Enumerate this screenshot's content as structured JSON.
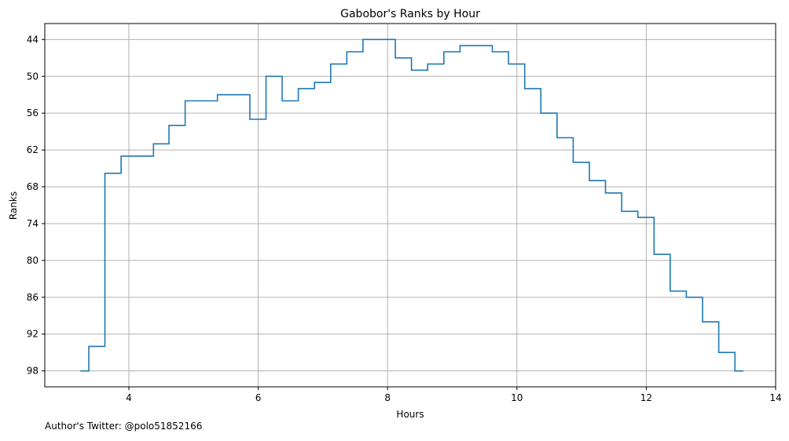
{
  "chart_data": {
    "type": "line",
    "title": "Gabobor's Ranks by Hour",
    "xlabel": "Hours",
    "ylabel": "Ranks",
    "xlim": [
      2.7,
      14
    ],
    "ylim": [
      100.6,
      41.4
    ],
    "y_inverted": true,
    "grid": true,
    "line_style": "step",
    "line_color": "#1f77b4",
    "x_ticks": [
      4,
      6,
      8,
      10,
      12,
      14
    ],
    "y_ticks": [
      44,
      50,
      56,
      62,
      68,
      74,
      80,
      86,
      92,
      98
    ],
    "x": [
      3.25,
      3.38,
      3.63,
      3.88,
      4.38,
      4.62,
      4.87,
      5.37,
      5.87,
      6.12,
      6.37,
      6.62,
      6.87,
      7.12,
      7.37,
      7.62,
      8.12,
      8.37,
      8.62,
      8.87,
      9.12,
      9.62,
      9.87,
      10.12,
      10.37,
      10.62,
      10.87,
      11.12,
      11.37,
      11.62,
      11.87,
      12.12,
      12.37,
      12.62,
      12.87,
      13.12,
      13.37,
      13.5
    ],
    "y": [
      98,
      94,
      65.8,
      63,
      61,
      58,
      54,
      53,
      57,
      50,
      54,
      52,
      51,
      48,
      46,
      44,
      47,
      49,
      48,
      46,
      45,
      46,
      48,
      52,
      56,
      60,
      64,
      67,
      69,
      72,
      73,
      79,
      85,
      86,
      90,
      95,
      98,
      98
    ]
  },
  "footer": {
    "credit": "Author's Twitter: @polo51852166"
  }
}
